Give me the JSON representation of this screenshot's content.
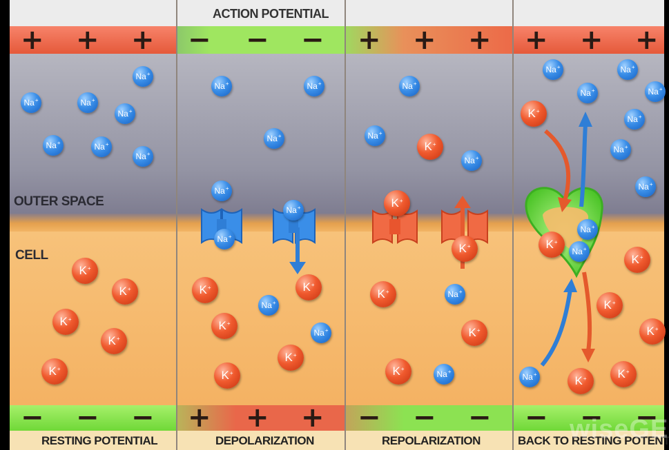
{
  "title": "ACTION POTENTIAL",
  "outer_label": "OUTER SPACE",
  "cell_label": "CELL",
  "panels": [
    {
      "caption": "RESTING POTENTIAL",
      "top_signs": [
        "+",
        "+",
        "+"
      ],
      "bottom_signs": [
        "−",
        "−",
        "−"
      ]
    },
    {
      "caption": "DEPOLARIZATION",
      "top_signs": [
        "−",
        "−",
        "−"
      ],
      "bottom_signs": [
        "+",
        "+",
        "+"
      ]
    },
    {
      "caption": "REPOLARIZATION",
      "top_signs": [
        "+",
        "+",
        "+"
      ],
      "bottom_signs": [
        "−",
        "−",
        "−"
      ]
    },
    {
      "caption": "BACK TO RESTING POTENTIAL",
      "top_signs": [
        "+",
        "+",
        "+"
      ],
      "bottom_signs": [
        "−",
        "−",
        "−"
      ]
    }
  ],
  "ion_labels": {
    "sodium": "Na",
    "potassium": "K",
    "charge": "+"
  },
  "watermark": "wiseGEEK",
  "colors": {
    "positive_band": "#f06a4a",
    "negative_band": "#8ee64a",
    "sodium": "#2f86e0",
    "potassium": "#ec4b24",
    "outer_space": "#8f8fa0",
    "cell": "#f5b868",
    "membrane": "#e0a050",
    "pump": "#6cd838"
  }
}
